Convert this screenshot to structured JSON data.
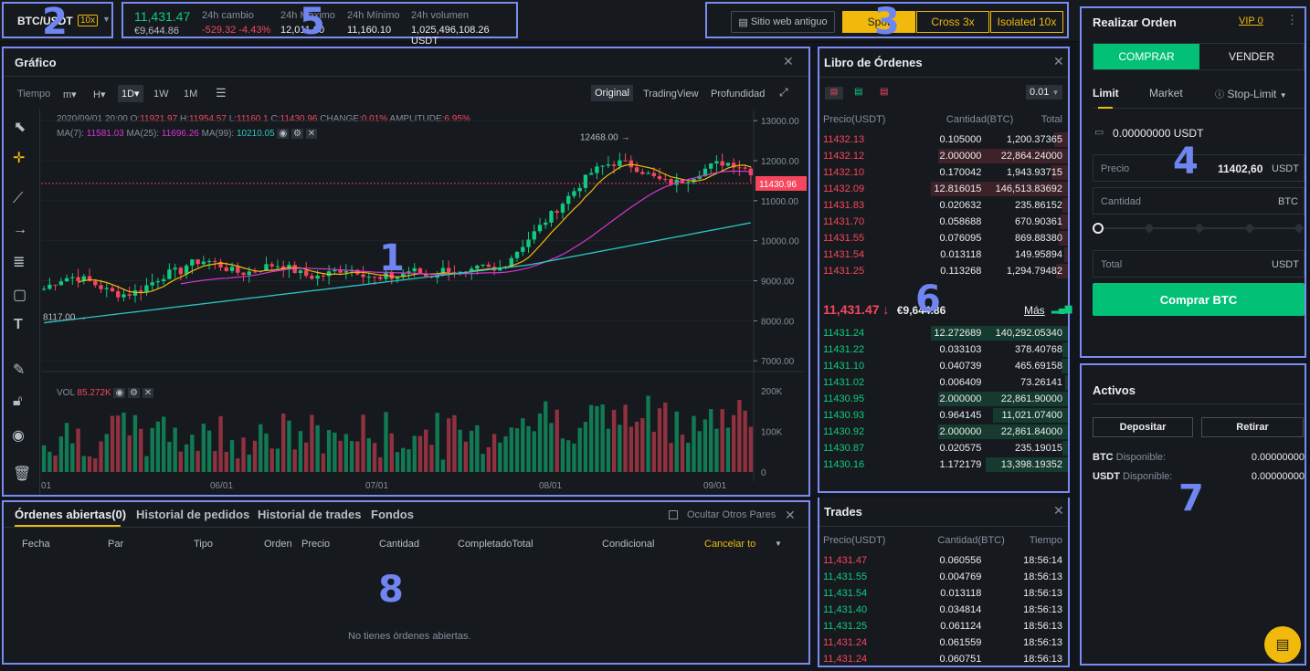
{
  "market": {
    "pair": "BTC/USDT",
    "leverage": "10x",
    "last_price": "11,431.47",
    "fiat_price": "€9,644.86",
    "stats": [
      {
        "label": "24h cambio",
        "value": "-529.32 -4.43%",
        "color": "red"
      },
      {
        "label": "24h Máximo",
        "value": "12,011.00",
        "color": "white"
      },
      {
        "label": "24h Mínimo",
        "value": "11,160.10",
        "color": "white"
      },
      {
        "label": "24h volumen",
        "value": "1,025,496,108.26 USDT",
        "color": "white"
      }
    ]
  },
  "topbar": {
    "old_site": "Sitio web antiguo",
    "spot": "Spot",
    "cross": "Cross 3x",
    "isolated": "Isolated 10x"
  },
  "markers": {
    "chart": "1",
    "pair": "2",
    "modes": "3",
    "order": "4",
    "stats": "5",
    "book": "6",
    "assets": "7",
    "open_orders": "8"
  },
  "chart": {
    "title": "Gráfico",
    "time_label": "Tiempo",
    "intervals": [
      "m▾",
      "H▾",
      "1D▾",
      "1W",
      "1M"
    ],
    "active_interval": "1D▾",
    "views": [
      "Original",
      "TradingView",
      "Profundidad"
    ],
    "active_view": "Original",
    "ohlc": {
      "date": "2020/09/01 20:00",
      "o_label": "O:",
      "o": "11921.97",
      "h_label": "H:",
      "h": "11954.57",
      "l_label": "L:",
      "l": "11160.1",
      "c_label": "C:",
      "c": "11430.96",
      "change_label": "CHANGE:",
      "change": "0.01%",
      "amp_label": "AMPLITUDE:",
      "amp": "6.95%"
    },
    "ma": [
      {
        "label": "MA(7):",
        "value": "11581.03",
        "color": "#d636d2"
      },
      {
        "label": "MA(25):",
        "value": "11696.26",
        "color": "#d636d2"
      },
      {
        "label": "MA(99):",
        "value": "10210.05",
        "color": "#2ec4c6"
      }
    ],
    "vol_label": "VOL",
    "vol_value": "85.272K",
    "current_price_tag": "11430.96",
    "high_marker": "12468.00",
    "low_marker": "8117.00",
    "price_ticks": [
      "13000.00",
      "12000.00",
      "11000.00",
      "10000.00",
      "9000.00",
      "8000.00",
      "7000.00"
    ],
    "vol_ticks": [
      "200K",
      "100K",
      "0"
    ],
    "date_ticks": [
      "01",
      "06/01",
      "07/01",
      "08/01",
      "09/01"
    ]
  },
  "book": {
    "title": "Libro de Órdenes",
    "precision": "0.01",
    "cols": [
      "Precio(USDT)",
      "Cantidad(BTC)",
      "Total"
    ],
    "asks": [
      [
        "11432.13",
        "0.105000",
        "1,200.37365",
        0.1
      ],
      [
        "11432.12",
        "2.000000",
        "22,864.24000",
        0.95
      ],
      [
        "11432.10",
        "0.170042",
        "1,943.93715",
        0.12
      ],
      [
        "11432.09",
        "12.816015",
        "146,513.83692",
        1.0
      ],
      [
        "11431.83",
        "0.020632",
        "235.86152",
        0.04
      ],
      [
        "11431.70",
        "0.058688",
        "670.90361",
        0.06
      ],
      [
        "11431.55",
        "0.076095",
        "869.88380",
        0.07
      ],
      [
        "11431.54",
        "0.013118",
        "149.95894",
        0.03
      ],
      [
        "11431.25",
        "0.113268",
        "1,294.79482",
        0.09
      ]
    ],
    "mid_price": "11,431.47",
    "mid_arrow": "↓",
    "mid_fiat": "€9,644.86",
    "more": "Más",
    "bids": [
      [
        "11431.24",
        "12.272689",
        "140,292.05340",
        1.0
      ],
      [
        "11431.22",
        "0.033103",
        "378.40768",
        0.04
      ],
      [
        "11431.10",
        "0.040739",
        "465.69158",
        0.05
      ],
      [
        "11431.02",
        "0.006409",
        "73.26141",
        0.02
      ],
      [
        "11430.95",
        "2.000000",
        "22,861.90000",
        0.95
      ],
      [
        "11430.93",
        "0.964145",
        "11,021.07400",
        0.55
      ],
      [
        "11430.92",
        "2.000000",
        "22,861.84000",
        0.95
      ],
      [
        "11430.87",
        "0.020575",
        "235.19015",
        0.04
      ],
      [
        "11430.16",
        "1.172179",
        "13,398.19352",
        0.6
      ]
    ]
  },
  "trades": {
    "title": "Trades",
    "cols": [
      "Precio(USDT)",
      "Cantidad(BTC)",
      "Tiempo"
    ],
    "rows": [
      [
        "11,431.47",
        "0.060556",
        "18:56:14",
        "r"
      ],
      [
        "11,431.55",
        "0.004769",
        "18:56:13",
        "g"
      ],
      [
        "11,431.54",
        "0.013118",
        "18:56:13",
        "g"
      ],
      [
        "11,431.40",
        "0.034814",
        "18:56:13",
        "g"
      ],
      [
        "11,431.25",
        "0.061124",
        "18:56:13",
        "g"
      ],
      [
        "11,431.24",
        "0.061559",
        "18:56:13",
        "r"
      ],
      [
        "11,431.24",
        "0.060751",
        "18:56:13",
        "r"
      ]
    ]
  },
  "order": {
    "title": "Realizar Orden",
    "vip": "VIP 0",
    "buy": "COMPRAR",
    "sell": "VENDER",
    "types": [
      "Limit",
      "Market",
      "Stop-Limit"
    ],
    "balance": "0.00000000 USDT",
    "price_label": "Precio",
    "price_value": "11402,60",
    "price_unit": "USDT",
    "qty_label": "Cantidad",
    "qty_unit": "BTC",
    "total_label": "Total",
    "total_unit": "USDT",
    "submit": "Comprar BTC"
  },
  "assets": {
    "title": "Activos",
    "deposit": "Depositar",
    "withdraw": "Retirar",
    "rows": [
      {
        "coin": "BTC",
        "label": "Disponible:",
        "value": "0.00000000"
      },
      {
        "coin": "USDT",
        "label": "Disponible:",
        "value": "0.00000000"
      }
    ]
  },
  "open_orders": {
    "tabs": [
      "Órdenes abiertas(0)",
      "Historial de pedidos",
      "Historial de trades",
      "Fondos"
    ],
    "hide_other": "Ocultar Otros Pares",
    "cols": [
      "Fecha",
      "Par",
      "Tipo",
      "Orden",
      "Precio",
      "Cantidad",
      "CompletadoTotal",
      "Condicional"
    ],
    "cancel": "Cancelar to",
    "empty": "No tienes órdenes abiertas."
  },
  "colors": {
    "up": "#0ecb81",
    "down": "#f6465d",
    "accent": "#f0b90b",
    "marker": "#6f86f2"
  }
}
